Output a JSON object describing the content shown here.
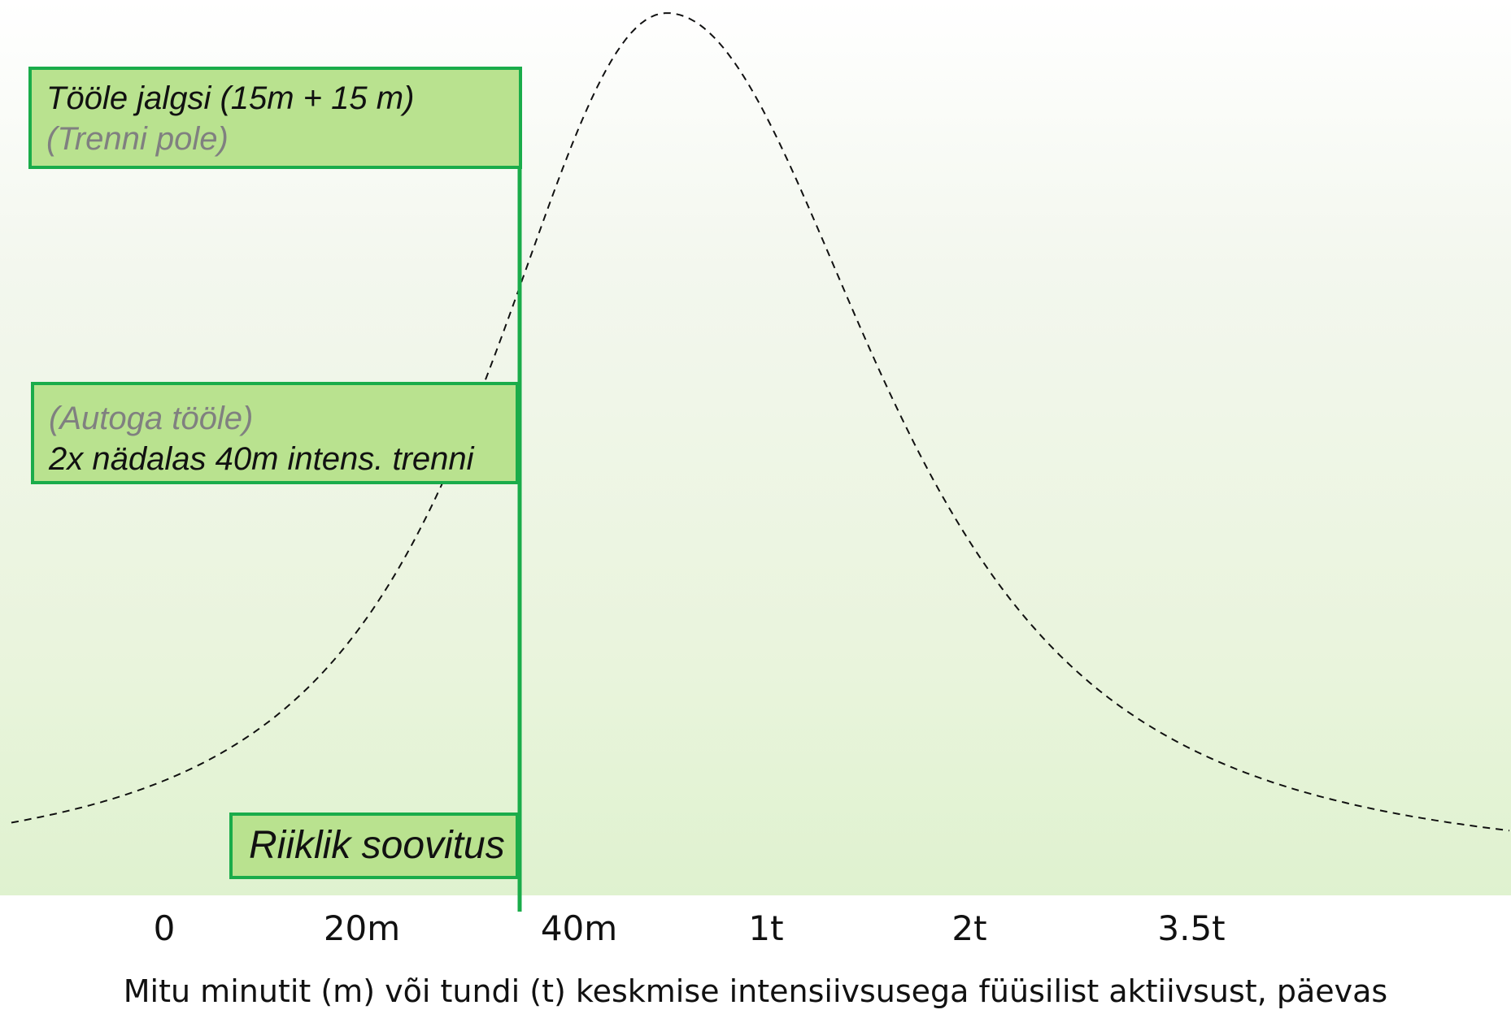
{
  "chart_data": {
    "type": "line",
    "xlabel": "Mitu minutit (m) või tundi (t) keskmise intensiivsusega füüsilist aktiivsust, päevas",
    "ylabel": "",
    "x_ticks": [
      "0",
      "20m",
      "40m",
      "1t",
      "2t",
      "3.5t"
    ],
    "series": [
      {
        "style": "dashed",
        "color": "#111111",
        "points": [
          {
            "x": "0",
            "y": 0.05
          },
          {
            "x": "20m",
            "y": 0.22
          },
          {
            "x": "40m",
            "y": 0.88
          },
          {
            "x": "1t",
            "y": 0.92
          },
          {
            "x": "2t",
            "y": 0.38
          },
          {
            "x": "3.5t",
            "y": 0.12
          }
        ]
      }
    ],
    "reference_line": {
      "label": "Riiklik soovitus",
      "color": "#1aac4a"
    },
    "annotations": [
      {
        "lines": [
          "Tööle jalgsi (15m + 15 m)",
          "(Trenni pole)"
        ]
      },
      {
        "lines": [
          "(Autoga tööle)",
          "2x nädalas 40m intens. trenni"
        ]
      }
    ],
    "grid": false,
    "legend": "none"
  },
  "colors": {
    "accent_green": "#1aac4a",
    "box_fill": "#b9e28f",
    "muted_text": "#808080"
  }
}
